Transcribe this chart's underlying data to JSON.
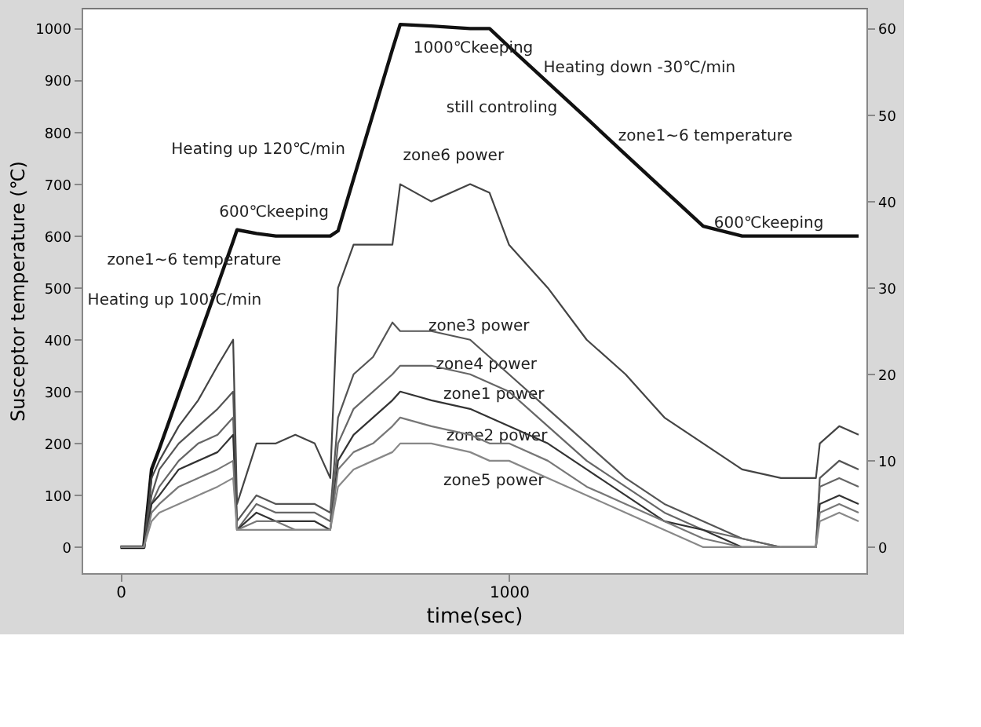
{
  "chart_data": {
    "type": "line",
    "xlabel": "time(sec)",
    "ylabel": "Susceptor temperature (℃)",
    "x": [
      0,
      40,
      60,
      80,
      100,
      150,
      200,
      250,
      290,
      300,
      350,
      400,
      450,
      500,
      540,
      560,
      600,
      650,
      700,
      720,
      800,
      900,
      950,
      1000,
      1100,
      1200,
      1300,
      1400,
      1500,
      1600,
      1700,
      1790,
      1800,
      1850,
      1900
    ],
    "xlim": [
      -100,
      1920
    ],
    "xticks": [
      0,
      {
        "value": 1000,
        "label": "1000"
      }
    ],
    "ylim": [
      -50,
      1040
    ],
    "yticks": [
      0,
      100,
      200,
      300,
      400,
      500,
      600,
      700,
      800,
      900,
      {
        "value": 1000,
        "label": "1000"
      }
    ],
    "y2lim": [
      -3,
      62.4
    ],
    "y2ticks": [
      0,
      10,
      20,
      30,
      40,
      50,
      60
    ],
    "grid": false,
    "legend": false,
    "line_style": "solid",
    "marker": "none",
    "series": [
      {
        "color": "#111111",
        "values": [
          0,
          0,
          0,
          150,
          190,
          295,
          400,
          505,
          590,
          612,
          605,
          600,
          600,
          600,
          600,
          610,
          710,
          835,
          960,
          1008,
          1005,
          1000,
          1000,
          965,
          896,
          827,
          757,
          688,
          619,
          600,
          600,
          600,
          600,
          600,
          600
        ]
      },
      {
        "color": "#444444",
        "axis": "y2",
        "values": [
          0,
          0,
          0,
          8,
          10,
          14,
          17,
          21,
          24,
          5,
          12,
          12,
          13,
          12,
          8,
          30,
          35,
          35,
          35,
          42,
          40,
          42,
          41,
          35,
          30,
          24,
          20,
          15,
          12,
          9,
          8,
          8,
          12,
          14,
          13
        ]
      },
      {
        "color": "#555555",
        "axis": "y2",
        "values": [
          0,
          0,
          0,
          6,
          9,
          12,
          14,
          16,
          18,
          3,
          6,
          5,
          5,
          5,
          4,
          15,
          20,
          22,
          26,
          25,
          25,
          24,
          22,
          20,
          16,
          12,
          8,
          5,
          3,
          1,
          0,
          0,
          8,
          10,
          9
        ]
      },
      {
        "color": "#666666",
        "axis": "y2",
        "values": [
          0,
          0,
          0,
          5,
          7,
          10,
          12,
          13,
          15,
          2,
          5,
          4,
          4,
          4,
          3,
          12,
          16,
          18,
          20,
          21,
          21,
          20,
          19,
          18,
          14,
          10,
          7,
          4,
          2,
          1,
          0,
          0,
          7,
          8,
          7
        ]
      },
      {
        "color": "#333333",
        "axis": "y2",
        "values": [
          0,
          0,
          0,
          5,
          6,
          9,
          10,
          11,
          13,
          2,
          4,
          3,
          3,
          3,
          2,
          10,
          13,
          15,
          17,
          18,
          17,
          16,
          15,
          14,
          12,
          9,
          6,
          3,
          2,
          0,
          0,
          0,
          5,
          6,
          5
        ]
      },
      {
        "color": "#777777",
        "axis": "y2",
        "values": [
          0,
          0,
          0,
          4,
          5,
          7,
          8,
          9,
          10,
          2,
          3,
          3,
          2,
          2,
          2,
          9,
          11,
          12,
          14,
          15,
          14,
          13,
          12,
          12,
          10,
          7,
          5,
          3,
          1,
          0,
          0,
          0,
          4,
          5,
          4
        ]
      },
      {
        "color": "#888888",
        "axis": "y2",
        "values": [
          0,
          0,
          0,
          3,
          4,
          5,
          6,
          7,
          8,
          2,
          2,
          2,
          2,
          2,
          2,
          7,
          9,
          10,
          11,
          12,
          12,
          11,
          10,
          10,
          8,
          6,
          4,
          2,
          0,
          0,
          0,
          0,
          3,
          4,
          3
        ]
      }
    ],
    "annotations": [
      "Heating up 100℃/min",
      "zone1~6 temperature",
      "600℃keeping",
      "Heating up 120℃/min",
      "1000℃keeping",
      "Heating down -30℃/min",
      "still controling",
      "zone1~6 temperature",
      "600℃keeping",
      "zone6 power",
      "zone3 power",
      "zone4 power",
      "zone1 power",
      "zone2 power",
      "zone5 power"
    ]
  }
}
